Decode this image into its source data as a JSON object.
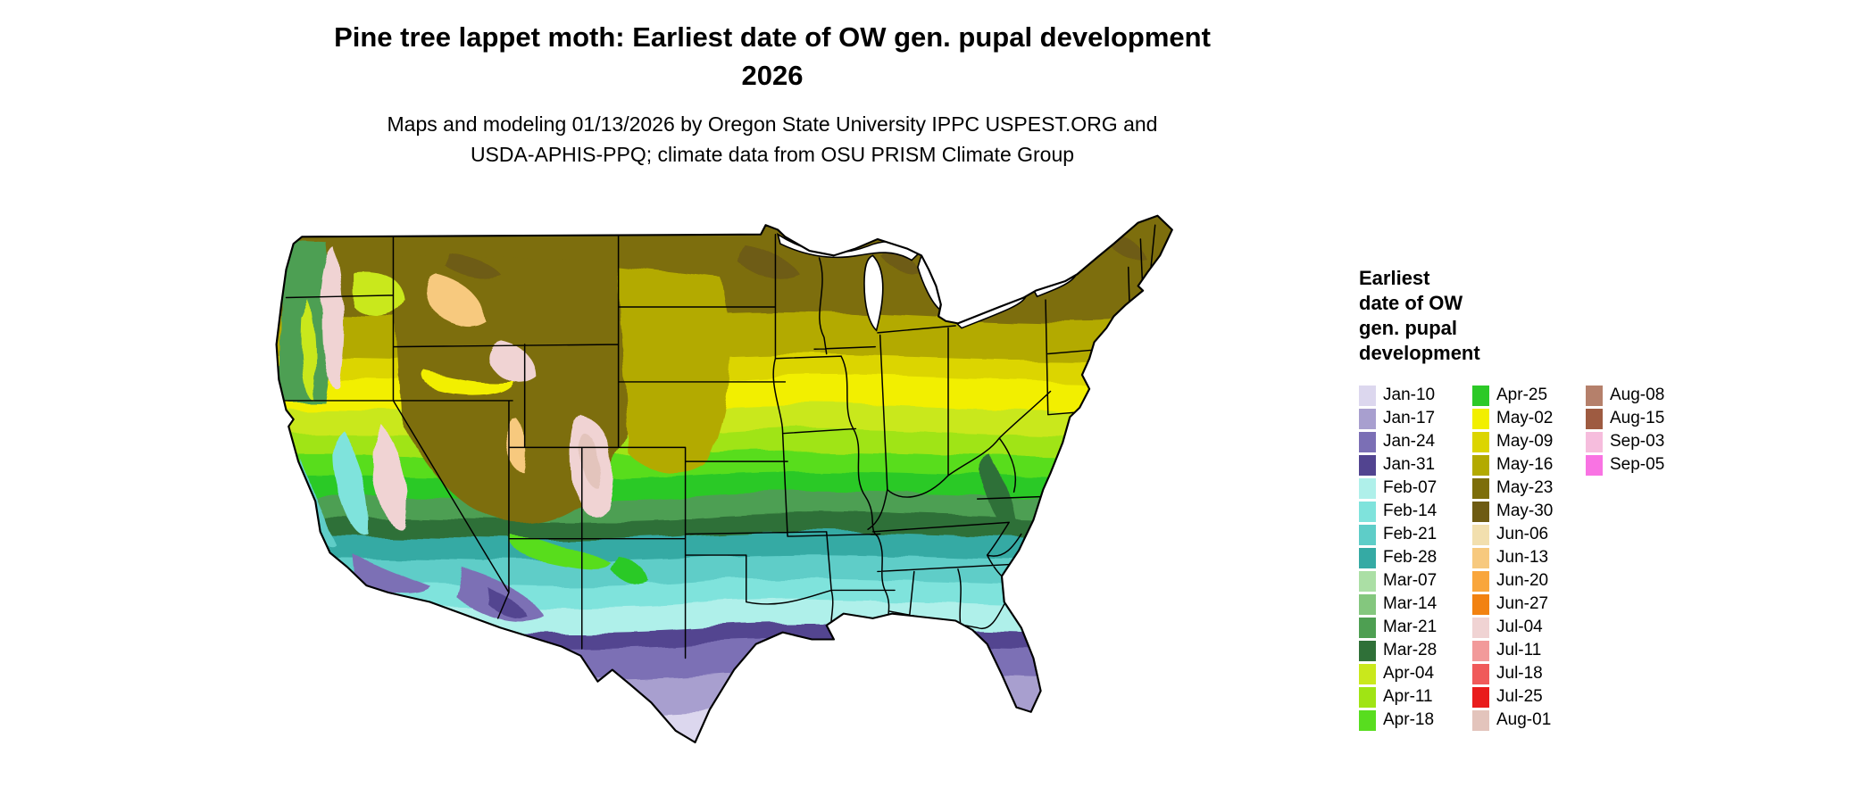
{
  "title": {
    "line1": "Pine tree lappet moth: Earliest date of OW gen. pupal development",
    "line2": "2026"
  },
  "subtitle": {
    "line1": "Maps and modeling 01/13/2026 by Oregon State University IPPC USPEST.ORG and",
    "line2": "USDA-APHIS-PPQ; climate data from OSU PRISM Climate Group"
  },
  "legend": {
    "title_lines": [
      "Earliest",
      "date of OW",
      "gen. pupal",
      "development"
    ],
    "columns": [
      [
        {
          "label": "Jan-10",
          "key": "jan10"
        },
        {
          "label": "Jan-17",
          "key": "jan17"
        },
        {
          "label": "Jan-24",
          "key": "jan24"
        },
        {
          "label": "Jan-31",
          "key": "jan31"
        },
        {
          "label": "Feb-07",
          "key": "feb07"
        },
        {
          "label": "Feb-14",
          "key": "feb14"
        },
        {
          "label": "Feb-21",
          "key": "feb21"
        },
        {
          "label": "Feb-28",
          "key": "feb28"
        },
        {
          "label": "Mar-07",
          "key": "mar07"
        },
        {
          "label": "Mar-14",
          "key": "mar14"
        },
        {
          "label": "Mar-21",
          "key": "mar21"
        },
        {
          "label": "Mar-28",
          "key": "mar28"
        },
        {
          "label": "Apr-04",
          "key": "apr04"
        },
        {
          "label": "Apr-11",
          "key": "apr11"
        },
        {
          "label": "Apr-18",
          "key": "apr18"
        }
      ],
      [
        {
          "label": "Apr-25",
          "key": "apr25"
        },
        {
          "label": "May-02",
          "key": "may02"
        },
        {
          "label": "May-09",
          "key": "may09"
        },
        {
          "label": "May-16",
          "key": "may16"
        },
        {
          "label": "May-23",
          "key": "may23"
        },
        {
          "label": "May-30",
          "key": "may30"
        },
        {
          "label": "Jun-06",
          "key": "jun06"
        },
        {
          "label": "Jun-13",
          "key": "jun13"
        },
        {
          "label": "Jun-20",
          "key": "jun20"
        },
        {
          "label": "Jun-27",
          "key": "jun27"
        },
        {
          "label": "Jul-04",
          "key": "jul04"
        },
        {
          "label": "Jul-11",
          "key": "jul11"
        },
        {
          "label": "Jul-18",
          "key": "jul18"
        },
        {
          "label": "Jul-25",
          "key": "jul25"
        },
        {
          "label": "Aug-01",
          "key": "aug01"
        }
      ],
      [
        {
          "label": "Aug-08",
          "key": "aug08"
        },
        {
          "label": "Aug-15",
          "key": "aug15"
        },
        {
          "label": "Sep-03",
          "key": "sep03"
        },
        {
          "label": "Sep-05",
          "key": "sep05"
        }
      ]
    ]
  },
  "palette": {
    "jan10": "#dcd7ee",
    "jan17": "#a89fcf",
    "jan24": "#7b6fb5",
    "jan31": "#524490",
    "feb07": "#aff0ea",
    "feb14": "#7fe3dc",
    "feb21": "#5ecdc8",
    "feb28": "#35aaa4",
    "mar07": "#abdfa5",
    "mar14": "#84c77e",
    "mar21": "#4e9f52",
    "mar28": "#2f7038",
    "apr04": "#c9e81c",
    "apr11": "#a0e414",
    "apr18": "#58dd1f",
    "apr25": "#2cc927",
    "may02": "#f2ef00",
    "may09": "#dcd500",
    "may16": "#b3aa00",
    "may23": "#7d6e0a",
    "may30": "#6e5b12",
    "jun06": "#f2dfae",
    "jun13": "#f7c97e",
    "jun20": "#f9a63c",
    "jun27": "#f28211",
    "jul04": "#f0d3d3",
    "jul11": "#f29a9a",
    "jul18": "#f05a5a",
    "jul25": "#e91c1c",
    "aug01": "#e3c4bc",
    "aug08": "#b5806b",
    "aug15": "#9e5b41",
    "sep03": "#f6bddd",
    "sep05": "#f973e3"
  }
}
